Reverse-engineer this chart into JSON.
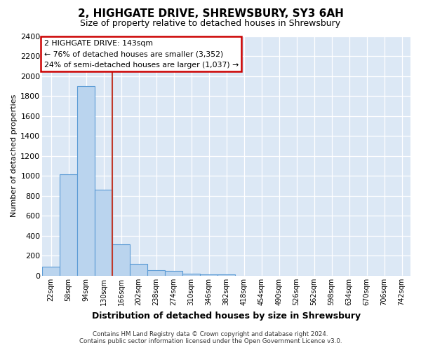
{
  "title": "2, HIGHGATE DRIVE, SHREWSBURY, SY3 6AH",
  "subtitle": "Size of property relative to detached houses in Shrewsbury",
  "xlabel": "Distribution of detached houses by size in Shrewsbury",
  "ylabel": "Number of detached properties",
  "footnote1": "Contains HM Land Registry data © Crown copyright and database right 2024.",
  "footnote2": "Contains public sector information licensed under the Open Government Licence v3.0.",
  "annotation_line1": "2 HIGHGATE DRIVE: 143sqm",
  "annotation_line2": "← 76% of detached houses are smaller (3,352)",
  "annotation_line3": "24% of semi-detached houses are larger (1,037) →",
  "bar_labels": [
    "22sqm",
    "58sqm",
    "94sqm",
    "130sqm",
    "166sqm",
    "202sqm",
    "238sqm",
    "274sqm",
    "310sqm",
    "346sqm",
    "382sqm",
    "418sqm",
    "454sqm",
    "490sqm",
    "526sqm",
    "562sqm",
    "598sqm",
    "634sqm",
    "670sqm",
    "706sqm",
    "742sqm"
  ],
  "bar_values": [
    90,
    1015,
    1900,
    865,
    315,
    120,
    55,
    48,
    20,
    15,
    15,
    0,
    0,
    0,
    0,
    0,
    0,
    0,
    0,
    0,
    0
  ],
  "bar_color": "#bad4ee",
  "bar_edge_color": "#5b9bd5",
  "vline_position": 3.5,
  "vline_color": "#c0392b",
  "ylim": [
    0,
    2400
  ],
  "yticks": [
    0,
    200,
    400,
    600,
    800,
    1000,
    1200,
    1400,
    1600,
    1800,
    2000,
    2200,
    2400
  ],
  "bg_color": "#dce8f5",
  "grid_color": "#ffffff",
  "fig_bg_color": "#ffffff",
  "title_fontsize": 11,
  "subtitle_fontsize": 9,
  "annotation_box_color": "#ffffff",
  "annotation_box_edge": "#cc0000",
  "ylabel_fontsize": 8,
  "xlabel_fontsize": 9,
  "tick_fontsize": 7,
  "ytick_fontsize": 8
}
